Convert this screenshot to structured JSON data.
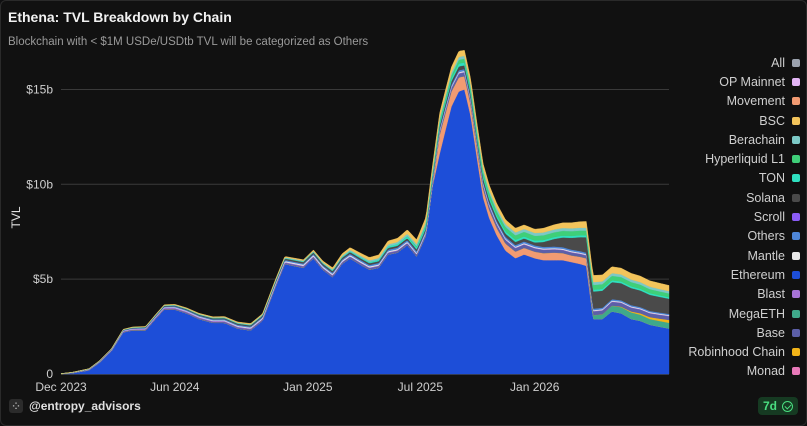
{
  "header": {
    "title": "Ethena: TVL Breakdown by Chain",
    "subtitle": "Blockchain with < $1M USDe/USDtb TVL will be categorized as Others"
  },
  "footer": {
    "handle": "@entropy_advisors",
    "badge": "7d"
  },
  "chart_data": {
    "type": "area",
    "ylabel": "TVL",
    "ylim": [
      0,
      16.5
    ],
    "y_ticks": [
      {
        "value": 0,
        "label": "0"
      },
      {
        "value": 5,
        "label": "$5b"
      },
      {
        "value": 10,
        "label": "$10b"
      },
      {
        "value": 15,
        "label": "$15b"
      }
    ],
    "x_ticks": [
      "Dec 2023",
      "Jun 2024",
      "Jan 2025",
      "Jul 2025",
      "Jan 2026"
    ],
    "x_tick_dates": [
      "2023-12-01",
      "2024-06-01",
      "2025-01-01",
      "2025-07-01",
      "2026-01-01"
    ],
    "xlim": [
      "2023-12-01",
      "2026-08-05"
    ],
    "grid": true,
    "legend_position": "right",
    "legend": [
      {
        "name": "All",
        "color": "#9ca3af"
      },
      {
        "name": "OP Mainnet",
        "color": "#e3b5f5"
      },
      {
        "name": "Movement",
        "color": "#f29b72"
      },
      {
        "name": "BSC",
        "color": "#f3c45b"
      },
      {
        "name": "Berachain",
        "color": "#7cc9c6"
      },
      {
        "name": "Hyperliquid L1",
        "color": "#3fcf79"
      },
      {
        "name": "TON",
        "color": "#2fe0c0"
      },
      {
        "name": "Solana",
        "color": "#4a4a4a"
      },
      {
        "name": "Scroll",
        "color": "#8b5cf6"
      },
      {
        "name": "Others",
        "color": "#4e86d8"
      },
      {
        "name": "Mantle",
        "color": "#e8e8e8"
      },
      {
        "name": "Ethereum",
        "color": "#1d4ed8"
      },
      {
        "name": "Blast",
        "color": "#a773d6"
      },
      {
        "name": "MegaETH",
        "color": "#3fa98a"
      },
      {
        "name": "Base",
        "color": "#5c5fa8"
      },
      {
        "name": "Robinhood Chain",
        "color": "#f2b418"
      },
      {
        "name": "Monad",
        "color": "#e879b9"
      }
    ],
    "series": [
      {
        "name": "Ethereum",
        "color": "#1d4ed8",
        "x": [
          "2023-12-01",
          "2023-12-20",
          "2024-01-15",
          "2024-02-01",
          "2024-02-20",
          "2024-03-10",
          "2024-03-25",
          "2024-04-15",
          "2024-05-01",
          "2024-05-15",
          "2024-06-01",
          "2024-06-20",
          "2024-07-10",
          "2024-08-01",
          "2024-08-20",
          "2024-09-10",
          "2024-10-01",
          "2024-10-20",
          "2024-11-10",
          "2024-11-25",
          "2024-12-10",
          "2024-12-25",
          "2025-01-10",
          "2025-01-25",
          "2025-02-10",
          "2025-02-25",
          "2025-03-10",
          "2025-03-25",
          "2025-04-10",
          "2025-04-25",
          "2025-05-10",
          "2025-05-25",
          "2025-06-10",
          "2025-06-25",
          "2025-07-10",
          "2025-07-20",
          "2025-08-01",
          "2025-08-10",
          "2025-08-20",
          "2025-09-01",
          "2025-09-10",
          "2025-09-20",
          "2025-10-01",
          "2025-10-10",
          "2025-10-20",
          "2025-11-01",
          "2025-11-15",
          "2025-12-01",
          "2025-12-15",
          "2026-01-01",
          "2026-01-15",
          "2026-02-01",
          "2026-02-15",
          "2026-03-01",
          "2026-03-15",
          "2026-03-25",
          "2026-04-05",
          "2026-04-20",
          "2026-05-05",
          "2026-05-20",
          "2026-06-05",
          "2026-06-20",
          "2026-07-05",
          "2026-07-20",
          "2026-08-05"
        ],
        "values": [
          0,
          0.05,
          0.2,
          0.6,
          1.2,
          2.2,
          2.3,
          2.3,
          2.9,
          3.4,
          3.4,
          3.2,
          2.9,
          2.7,
          2.7,
          2.4,
          2.3,
          2.8,
          4.6,
          5.8,
          5.7,
          5.6,
          6.1,
          5.5,
          5.1,
          5.8,
          6.1,
          5.8,
          5.5,
          5.6,
          6.3,
          6.4,
          6.8,
          6.2,
          7.3,
          9.8,
          11.6,
          12.8,
          14.1,
          14.9,
          15.0,
          13.6,
          11.2,
          9.3,
          8.2,
          7.3,
          6.5,
          6.1,
          6.3,
          6.1,
          6.0,
          6.0,
          6.0,
          5.9,
          5.8,
          5.7,
          2.9,
          2.9,
          3.3,
          3.2,
          2.9,
          2.8,
          2.6,
          2.5,
          2.4
        ]
      },
      {
        "name": "Movement",
        "color": "#f29b72",
        "x": [
          "2023-12-01",
          "2025-07-20",
          "2025-08-01",
          "2025-08-20",
          "2025-09-10",
          "2025-10-01",
          "2025-11-01",
          "2025-12-01",
          "2026-01-01",
          "2026-02-01",
          "2026-03-01",
          "2026-03-25",
          "2026-04-05",
          "2026-06-05",
          "2026-08-05"
        ],
        "values": [
          0,
          0,
          1.0,
          0.8,
          0.7,
          0.5,
          0.4,
          0.35,
          0.35,
          0.4,
          0.35,
          0.4,
          0,
          0,
          0
        ]
      },
      {
        "name": "MegaETH",
        "color": "#3fa98a",
        "x": [
          "2023-12-01",
          "2026-03-25",
          "2026-04-05",
          "2026-05-05",
          "2026-06-05",
          "2026-07-05",
          "2026-08-05"
        ],
        "values": [
          0,
          0,
          0.2,
          0.3,
          0.35,
          0.3,
          0.3
        ]
      },
      {
        "name": "Robinhood Chain",
        "color": "#f2b418",
        "x": [
          "2023-12-01",
          "2026-05-01",
          "2026-06-05",
          "2026-07-05",
          "2026-08-05"
        ],
        "values": [
          0,
          0,
          0.05,
          0.1,
          0.15
        ]
      },
      {
        "name": "Base",
        "color": "#5c5fa8",
        "x": [
          "2023-12-01",
          "2025-07-01",
          "2025-09-01",
          "2025-10-01",
          "2026-03-25",
          "2026-04-05",
          "2026-08-05"
        ],
        "values": [
          0.02,
          0.1,
          0.2,
          0.2,
          0.15,
          0.2,
          0.2
        ]
      },
      {
        "name": "Blast",
        "color": "#a773d6",
        "x": [
          "2023-12-01",
          "2024-06-01",
          "2025-01-01",
          "2026-08-05"
        ],
        "values": [
          0,
          0.05,
          0.03,
          0.02
        ]
      },
      {
        "name": "Mantle",
        "color": "#e8e8e8",
        "x": [
          "2023-12-01",
          "2024-11-10",
          "2025-01-01",
          "2026-08-05"
        ],
        "values": [
          0,
          0.05,
          0.06,
          0.04
        ]
      },
      {
        "name": "Others",
        "color": "#4e86d8",
        "x": [
          "2023-12-01",
          "2024-06-01",
          "2025-01-01",
          "2025-09-01",
          "2026-04-05",
          "2026-08-05"
        ],
        "values": [
          0,
          0.05,
          0.06,
          0.1,
          0.08,
          0.06
        ]
      },
      {
        "name": "Solana",
        "color": "#4a4a4a",
        "x": [
          "2023-12-01",
          "2024-06-01",
          "2025-01-01",
          "2025-07-01",
          "2025-09-01",
          "2026-01-01",
          "2026-04-05",
          "2026-06-05",
          "2026-08-05"
        ],
        "values": [
          0,
          0.04,
          0.08,
          0.1,
          0.2,
          0.15,
          0.9,
          0.9,
          0.8
        ]
      },
      {
        "name": "TON",
        "color": "#2fe0c0",
        "x": [
          "2023-12-01",
          "2025-02-01",
          "2025-09-01",
          "2026-01-01",
          "2026-04-05",
          "2026-08-05"
        ],
        "values": [
          0,
          0.03,
          0.15,
          0.1,
          0.1,
          0.08
        ]
      },
      {
        "name": "Hyperliquid L1",
        "color": "#3fcf79",
        "x": [
          "2023-12-01",
          "2025-06-01",
          "2025-09-01",
          "2026-01-01",
          "2026-04-05",
          "2026-08-05"
        ],
        "values": [
          0,
          0,
          0.2,
          0.25,
          0.25,
          0.2
        ]
      },
      {
        "name": "Berachain",
        "color": "#7cc9c6",
        "x": [
          "2023-12-01",
          "2025-02-01",
          "2025-09-01",
          "2026-01-01",
          "2026-04-05",
          "2026-08-05"
        ],
        "values": [
          0,
          0.05,
          0.15,
          0.15,
          0.15,
          0.12
        ]
      },
      {
        "name": "BSC",
        "color": "#f3c45b",
        "x": [
          "2023-12-01",
          "2024-06-01",
          "2025-01-01",
          "2025-09-01",
          "2026-01-01",
          "2026-04-05",
          "2026-08-05"
        ],
        "values": [
          0,
          0.03,
          0.05,
          0.3,
          0.2,
          0.35,
          0.3
        ]
      }
    ]
  }
}
